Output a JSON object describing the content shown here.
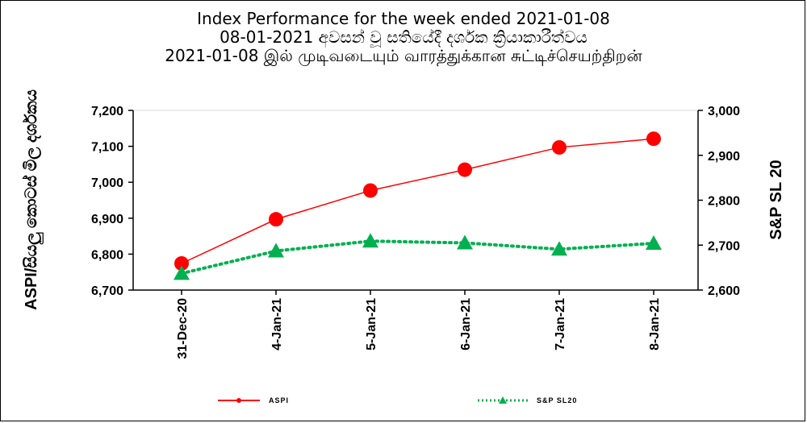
{
  "chart_data": {
    "type": "line",
    "title_lines": [
      "Index Performance for the week ended 2021-01-08",
      "08-01-2021 අවසන් වූ සතියේදී දර්ශක ක්‍රියාකාරීත්වය",
      "2021-01-08 இல் முடிவடையும் வாரத்துக்கான சுட்டிச்செயற்திறன்"
    ],
    "categories": [
      "31-Dec-20",
      "4-Jan-21",
      "5-Jan-21",
      "6-Jan-21",
      "7-Jan-21",
      "8-Jan-21"
    ],
    "series": [
      {
        "name": "ASPI",
        "axis": "left",
        "color": "#ff0000",
        "marker": "circle",
        "line": "solid",
        "values": [
          6774,
          6897,
          6977,
          7035,
          7097,
          7121
        ]
      },
      {
        "name": "S&P SL20",
        "axis": "right",
        "color": "#00b050",
        "marker": "triangle",
        "line": "dotted",
        "values": [
          2637,
          2687,
          2709,
          2705,
          2691,
          2704
        ]
      }
    ],
    "ylabel_left": "ASPI/සියලු කොටස් මිල දර්ශකය",
    "ylabel_right": "S&P SL 20",
    "ylim_left": [
      6700,
      7200
    ],
    "ylim_right": [
      2600,
      3000
    ],
    "yticks_left": [
      "6,700",
      "6,800",
      "6,900",
      "7,000",
      "7,100",
      "7,200"
    ],
    "yticks_right": [
      "2,600",
      "2,700",
      "2,800",
      "2,900",
      "3,000"
    ],
    "legend_labels": [
      "ASPI",
      "S&P SL20"
    ],
    "legend_position": "bottom",
    "grid": false
  }
}
